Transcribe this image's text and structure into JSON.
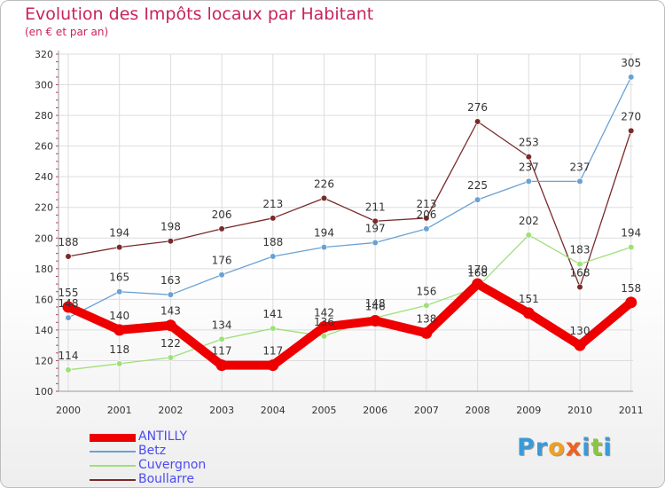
{
  "chart_data": {
    "type": "line",
    "title": "Evolution des Impôts locaux par Habitant",
    "subtitle": "(en € et par an)",
    "xlabel": "",
    "ylabel": "",
    "ylim": [
      100,
      320
    ],
    "yticks": [
      100,
      120,
      140,
      160,
      180,
      200,
      220,
      240,
      260,
      280,
      300,
      320
    ],
    "categories": [
      "2000",
      "2001",
      "2002",
      "2003",
      "2004",
      "2005",
      "2006",
      "2007",
      "2008",
      "2009",
      "2010",
      "2011"
    ],
    "series": [
      {
        "name": "ANTILLY",
        "color": "#ee0000",
        "values": [
          155,
          140,
          143,
          117,
          117,
          142,
          146,
          138,
          170,
          151,
          130,
          158
        ]
      },
      {
        "name": "Betz",
        "color": "#6aa1d4",
        "values": [
          148,
          165,
          163,
          176,
          188,
          194,
          197,
          206,
          225,
          237,
          237,
          305
        ]
      },
      {
        "name": "Cuvergnon",
        "color": "#9ee07a",
        "values": [
          114,
          118,
          122,
          134,
          141,
          136,
          148,
          156,
          168,
          202,
          183,
          194
        ]
      },
      {
        "name": "Boullarre",
        "color": "#7a2a2a",
        "values": [
          188,
          194,
          198,
          206,
          213,
          226,
          211,
          213,
          276,
          253,
          168,
          270
        ]
      }
    ],
    "legend": "bottom-left"
  },
  "logo": {
    "text": "Proxiti",
    "letters": [
      {
        "ch": "P",
        "color": "#3a9ad9"
      },
      {
        "ch": "r",
        "color": "#3a9ad9"
      },
      {
        "ch": "o",
        "color": "#f0a020"
      },
      {
        "ch": "x",
        "color": "#f06020"
      },
      {
        "ch": "i",
        "color": "#3a9ad9"
      },
      {
        "ch": "t",
        "color": "#8cc640"
      },
      {
        "ch": "i",
        "color": "#3a9ad9"
      }
    ]
  }
}
